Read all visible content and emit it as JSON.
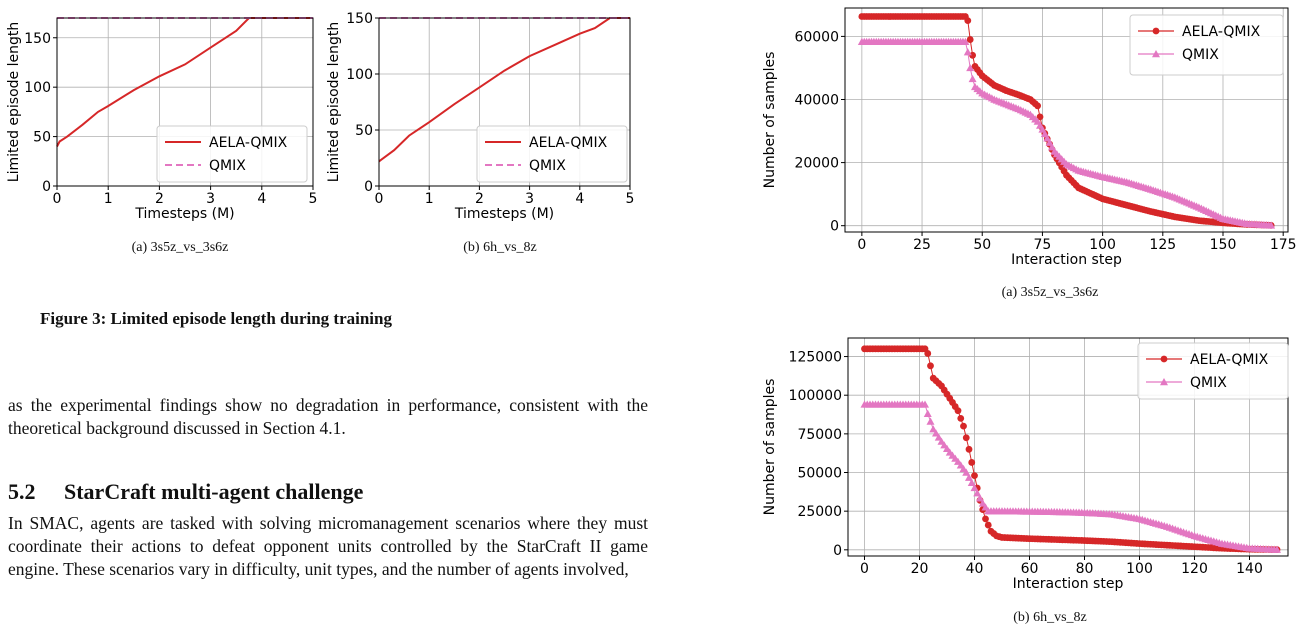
{
  "figure3": {
    "caption": "Figure 3: Limited episode length during training",
    "subfigures": [
      {
        "label": "(a)",
        "name": "3s5z_vs_3s6z"
      },
      {
        "label": "(b)",
        "name": "6h_vs_8z"
      }
    ]
  },
  "figure4": {
    "subfigures": [
      {
        "label": "(a)",
        "name": "3s5z_vs_3s6z"
      },
      {
        "label": "(b)",
        "name": "6h_vs_8z"
      }
    ]
  },
  "text": {
    "para1": "as the experimental findings show no degradation in performance, consistent with the theoretical background discussed in Section 4.1.",
    "section_number": "5.2",
    "section_title": "StarCraft multi-agent challenge",
    "para2": "In SMAC, agents are tasked with solving micromanagement scenarios where they must coordinate their actions to defeat opponent units controlled by the StarCraft II game engine. These scenarios vary in difficulty, unit types, and the number of agents involved,"
  },
  "colors": {
    "aela": "#d62728",
    "qmix": "#e377c2",
    "grid": "#b0b0b0"
  },
  "chart_data": [
    {
      "type": "line",
      "xlabel": "Timesteps (M)",
      "ylabel": "Limited episode length",
      "xlim": [
        0,
        5
      ],
      "ylim": [
        0,
        170
      ],
      "xticks": [
        0,
        1,
        2,
        3,
        4,
        5
      ],
      "yticks": [
        0,
        50,
        100,
        150
      ],
      "grid": true,
      "legend": "lower-right",
      "series": [
        {
          "name": "AELA-QMIX",
          "style": "solid",
          "color": "#d62728",
          "x": [
            0,
            0.05,
            0.2,
            0.5,
            0.8,
            1.0,
            1.5,
            2.0,
            2.5,
            3.0,
            3.5,
            3.75,
            3.85,
            4.0,
            5.0
          ],
          "y": [
            40,
            45,
            50,
            62,
            75,
            81,
            97,
            111,
            123,
            140,
            157,
            170,
            170,
            170,
            170
          ]
        },
        {
          "name": "QMIX",
          "style": "dashed",
          "color": "#e377c2",
          "x": [
            0,
            5
          ],
          "y": [
            170,
            170
          ]
        }
      ]
    },
    {
      "type": "line",
      "xlabel": "Timesteps (M)",
      "ylabel": "Limited episode length",
      "xlim": [
        0,
        5
      ],
      "ylim": [
        0,
        150
      ],
      "xticks": [
        0,
        1,
        2,
        3,
        4,
        5
      ],
      "yticks": [
        0,
        50,
        100,
        150
      ],
      "grid": true,
      "legend": "lower-right",
      "series": [
        {
          "name": "AELA-QMIX",
          "style": "solid",
          "color": "#d62728",
          "x": [
            0,
            0.3,
            0.6,
            1.0,
            1.5,
            2.0,
            2.5,
            3.0,
            3.5,
            4.0,
            4.3,
            4.6,
            4.7,
            5.0
          ],
          "y": [
            22,
            32,
            45,
            57,
            73,
            88,
            103,
            116,
            126,
            136,
            141,
            150,
            150,
            150
          ]
        },
        {
          "name": "QMIX",
          "style": "dashed",
          "color": "#e377c2",
          "x": [
            0,
            5
          ],
          "y": [
            150,
            150
          ]
        }
      ]
    },
    {
      "type": "line",
      "xlabel": "Interaction step",
      "ylabel": "Number of samples",
      "xlim": [
        -7,
        177
      ],
      "ylim": [
        -2000,
        69000
      ],
      "xticks": [
        0,
        25,
        50,
        75,
        100,
        125,
        150,
        175
      ],
      "yticks": [
        0,
        20000,
        40000,
        60000
      ],
      "grid": true,
      "legend": "top-right",
      "series": [
        {
          "name": "AELA-QMIX",
          "marker": "circle",
          "color": "#d62728",
          "x": [
            0,
            20,
            43,
            44,
            45,
            46,
            47,
            50,
            55,
            60,
            65,
            70,
            73,
            75,
            77,
            80,
            85,
            90,
            100,
            110,
            120,
            130,
            140,
            150,
            160,
            170
          ],
          "y": [
            66300,
            66300,
            66300,
            65000,
            59000,
            54000,
            50500,
            47500,
            44500,
            42800,
            41500,
            40000,
            38000,
            31000,
            27500,
            22500,
            16000,
            12000,
            8500,
            6500,
            4500,
            2800,
            1600,
            900,
            400,
            100
          ]
        },
        {
          "name": "QMIX",
          "marker": "triangle",
          "color": "#e377c2",
          "x": [
            0,
            20,
            43,
            44,
            45,
            46,
            47,
            50,
            55,
            60,
            65,
            70,
            73,
            75,
            80,
            85,
            90,
            100,
            110,
            120,
            130,
            140,
            150,
            160,
            170
          ],
          "y": [
            58300,
            58300,
            58300,
            55000,
            50000,
            46500,
            44000,
            42000,
            40000,
            38500,
            37000,
            35200,
            33000,
            30500,
            23500,
            19500,
            17500,
            15500,
            13800,
            11500,
            9000,
            5800,
            2200,
            600,
            100
          ]
        }
      ]
    },
    {
      "type": "line",
      "xlabel": "Interaction step",
      "ylabel": "Number of samples",
      "xlim": [
        -6,
        154
      ],
      "ylim": [
        -4000,
        137000
      ],
      "xticks": [
        0,
        20,
        40,
        60,
        80,
        100,
        120,
        140
      ],
      "yticks": [
        0,
        25000,
        50000,
        75000,
        100000,
        125000
      ],
      "grid": true,
      "legend": "top-right",
      "series": [
        {
          "name": "AELA-QMIX",
          "marker": "circle",
          "color": "#d62728",
          "x": [
            0,
            10,
            22,
            23,
            25,
            28,
            31,
            34,
            36,
            38,
            40,
            42,
            44,
            46,
            48,
            50,
            60,
            70,
            80,
            90,
            100,
            110,
            120,
            130,
            140,
            150
          ],
          "y": [
            130000,
            130000,
            130000,
            127000,
            111000,
            106000,
            98000,
            90000,
            80000,
            65000,
            48000,
            32000,
            20000,
            12000,
            9000,
            8000,
            7200,
            6600,
            6000,
            5200,
            4000,
            3000,
            2000,
            1000,
            400,
            100
          ]
        },
        {
          "name": "QMIX",
          "marker": "triangle",
          "color": "#e377c2",
          "x": [
            0,
            10,
            22,
            23,
            25,
            28,
            31,
            34,
            37,
            40,
            43,
            45,
            50,
            60,
            70,
            80,
            90,
            100,
            110,
            120,
            130,
            140,
            150
          ],
          "y": [
            94000,
            94000,
            94000,
            88000,
            78000,
            70000,
            63000,
            57000,
            50000,
            40000,
            30000,
            25000,
            25000,
            24800,
            24500,
            24000,
            23000,
            20000,
            15000,
            9000,
            4000,
            1000,
            100
          ]
        }
      ]
    }
  ]
}
